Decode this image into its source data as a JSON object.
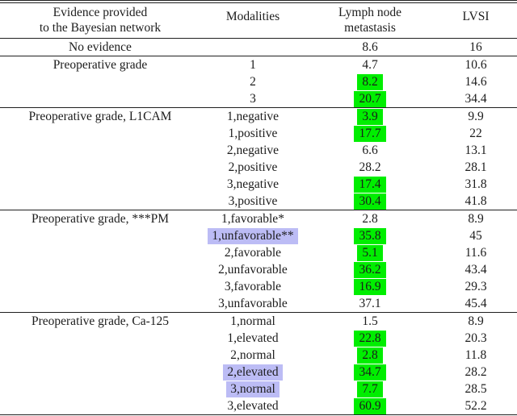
{
  "table": {
    "header": {
      "evidence_line1": "Evidence provided",
      "evidence_line2": "to the Bayesian network",
      "modalities": "Modalities",
      "lnm_line1": "Lymph node",
      "lnm_line2": "metastasis",
      "lvsi": "LVSI"
    },
    "colors": {
      "highlight_green": "#00ee00",
      "highlight_purple": "#bcbcf5",
      "rule_color": "#1f1f1f",
      "text_color": "#1c1c1c"
    },
    "sections": [
      {
        "evidence": "No evidence",
        "rows": [
          {
            "modality": "",
            "lnm": "8.6",
            "lnm_highlight": false,
            "lvsi": "16",
            "modality_highlight": false
          }
        ]
      },
      {
        "evidence": "Preoperative grade",
        "rows": [
          {
            "modality": "1",
            "lnm": "4.7",
            "lnm_highlight": false,
            "lvsi": "10.6",
            "modality_highlight": false
          },
          {
            "modality": "2",
            "lnm": "8.2",
            "lnm_highlight": true,
            "lvsi": "14.6",
            "modality_highlight": false
          },
          {
            "modality": "3",
            "lnm": "20.7",
            "lnm_highlight": true,
            "lvsi": "34.4",
            "modality_highlight": false
          }
        ]
      },
      {
        "evidence": "Preoperative grade, L1CAM",
        "rows": [
          {
            "modality": "1,negative",
            "lnm": "3.9",
            "lnm_highlight": true,
            "lvsi": "9.9",
            "modality_highlight": false
          },
          {
            "modality": "1,positive",
            "lnm": "17.7",
            "lnm_highlight": true,
            "lvsi": "22",
            "modality_highlight": false
          },
          {
            "modality": "2,negative",
            "lnm": "6.6",
            "lnm_highlight": false,
            "lvsi": "13.1",
            "modality_highlight": false
          },
          {
            "modality": "2,positive",
            "lnm": "28.2",
            "lnm_highlight": false,
            "lvsi": "28.1",
            "modality_highlight": false
          },
          {
            "modality": "3,negative",
            "lnm": "17.4",
            "lnm_highlight": true,
            "lvsi": "31.8",
            "modality_highlight": false
          },
          {
            "modality": "3,positive",
            "lnm": "30.4",
            "lnm_highlight": true,
            "lvsi": "41.8",
            "modality_highlight": false
          }
        ]
      },
      {
        "evidence": "Preoperative grade, ***PM",
        "rows": [
          {
            "modality": "1,favorable*",
            "lnm": "2.8",
            "lnm_highlight": false,
            "lvsi": "8.9",
            "modality_highlight": false
          },
          {
            "modality": "1,unfavorable**",
            "lnm": "35.8",
            "lnm_highlight": true,
            "lvsi": "45",
            "modality_highlight": true
          },
          {
            "modality": "2,favorable",
            "lnm": "5.1",
            "lnm_highlight": true,
            "lvsi": "11.6",
            "modality_highlight": false
          },
          {
            "modality": "2,unfavorable",
            "lnm": "36.2",
            "lnm_highlight": true,
            "lvsi": "43.4",
            "modality_highlight": false
          },
          {
            "modality": "3,favorable",
            "lnm": "16.9",
            "lnm_highlight": true,
            "lvsi": "29.3",
            "modality_highlight": false
          },
          {
            "modality": "3,unfavorable",
            "lnm": "37.1",
            "lnm_highlight": false,
            "lvsi": "45.4",
            "modality_highlight": false
          }
        ]
      },
      {
        "evidence": "Preoperative grade, Ca-125",
        "rows": [
          {
            "modality": "1,normal",
            "lnm": "1.5",
            "lnm_highlight": false,
            "lvsi": "8.9",
            "modality_highlight": false
          },
          {
            "modality": "1,elevated",
            "lnm": "22.8",
            "lnm_highlight": true,
            "lvsi": "20.3",
            "modality_highlight": false
          },
          {
            "modality": "2,normal",
            "lnm": "2.8",
            "lnm_highlight": true,
            "lvsi": "11.8",
            "modality_highlight": false
          },
          {
            "modality": "2,elevated",
            "lnm": "34.7",
            "lnm_highlight": true,
            "lvsi": "28.2",
            "modality_highlight": true
          },
          {
            "modality": "3,normal",
            "lnm": "7.7",
            "lnm_highlight": true,
            "lvsi": "28.5",
            "modality_highlight": true
          },
          {
            "modality": "3,elevated",
            "lnm": "60.9",
            "lnm_highlight": true,
            "lvsi": "52.2",
            "modality_highlight": false
          }
        ]
      }
    ]
  }
}
